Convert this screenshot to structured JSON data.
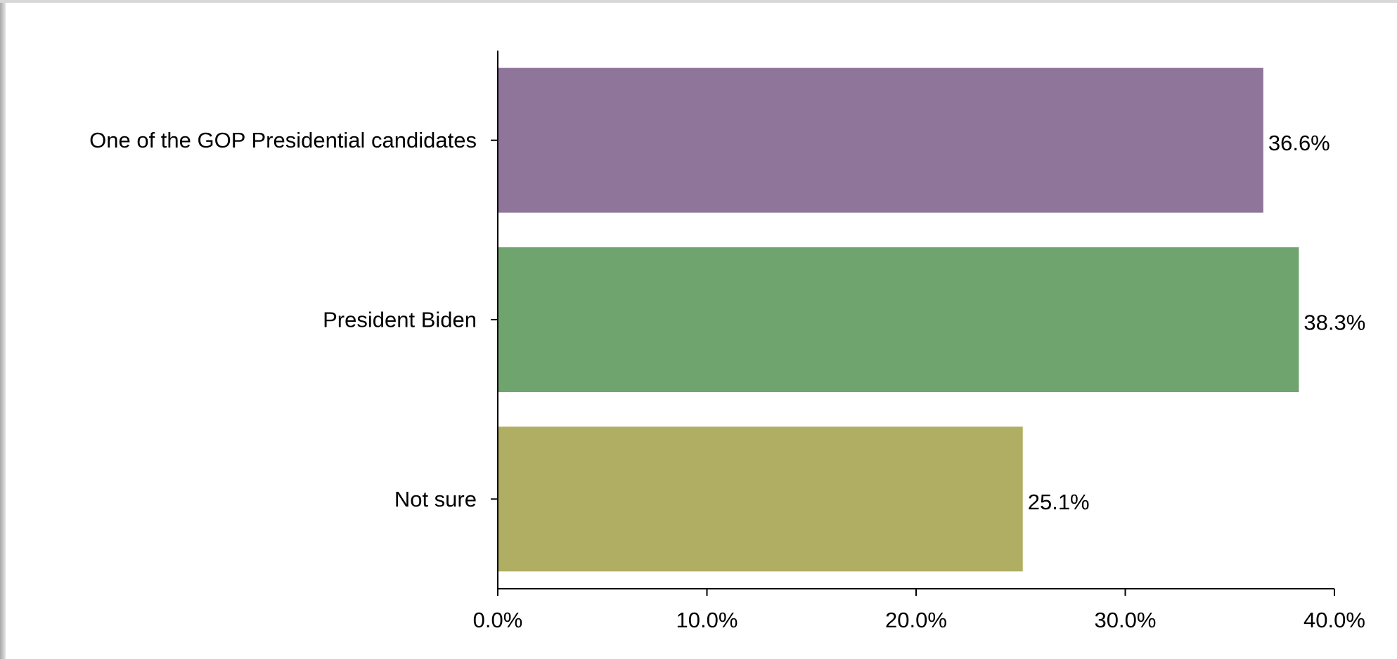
{
  "chart_data": {
    "type": "bar",
    "orientation": "horizontal",
    "title": "",
    "xlabel": "",
    "ylabel": "",
    "categories": [
      "One of the GOP Presidential candidates",
      "President Biden",
      "Not sure"
    ],
    "values": [
      36.6,
      38.3,
      25.1
    ],
    "value_labels": [
      "36.6%",
      "38.3%",
      "25.1%"
    ],
    "colors": [
      "#8e7599",
      "#70a46f",
      "#b0ae62"
    ],
    "xlim": [
      0,
      40
    ],
    "xticks": [
      0,
      10,
      20,
      30,
      40
    ],
    "xtick_labels": [
      "0.0%",
      "10.0%",
      "20.0%",
      "30.0%",
      "40.0%"
    ],
    "grid": false,
    "legend": "none"
  }
}
